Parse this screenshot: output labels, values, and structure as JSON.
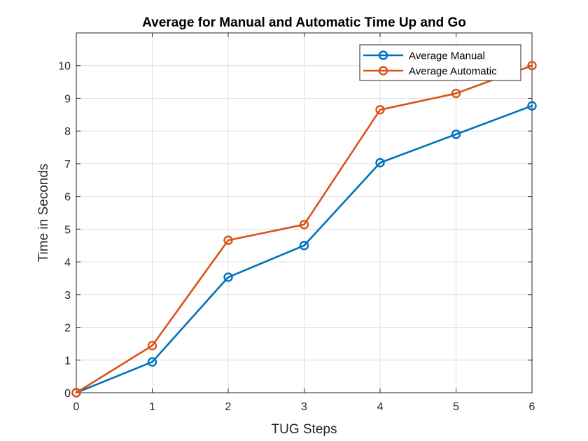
{
  "chart_data": {
    "type": "line",
    "title": "Average for Manual and Automatic Time Up and Go",
    "xlabel": "TUG Steps",
    "ylabel": "Time in Seconds",
    "xlim": [
      0,
      6
    ],
    "ylim": [
      0,
      11
    ],
    "x_ticks": [
      0,
      1,
      2,
      3,
      4,
      5,
      6
    ],
    "y_ticks": [
      0,
      1,
      2,
      3,
      4,
      5,
      6,
      7,
      8,
      9,
      10
    ],
    "grid": true,
    "legend_position": "top-right",
    "x": [
      0,
      1,
      2,
      3,
      4,
      5,
      6
    ],
    "series": [
      {
        "name": "Average Manual",
        "color": "#0072bd",
        "marker": "circle",
        "values": [
          0,
          0.94,
          3.53,
          4.5,
          7.03,
          7.9,
          8.77
        ]
      },
      {
        "name": "Average Automatic",
        "color": "#d95319",
        "marker": "circle",
        "values": [
          0,
          1.44,
          4.66,
          5.14,
          8.65,
          9.15,
          10.0
        ]
      }
    ]
  }
}
